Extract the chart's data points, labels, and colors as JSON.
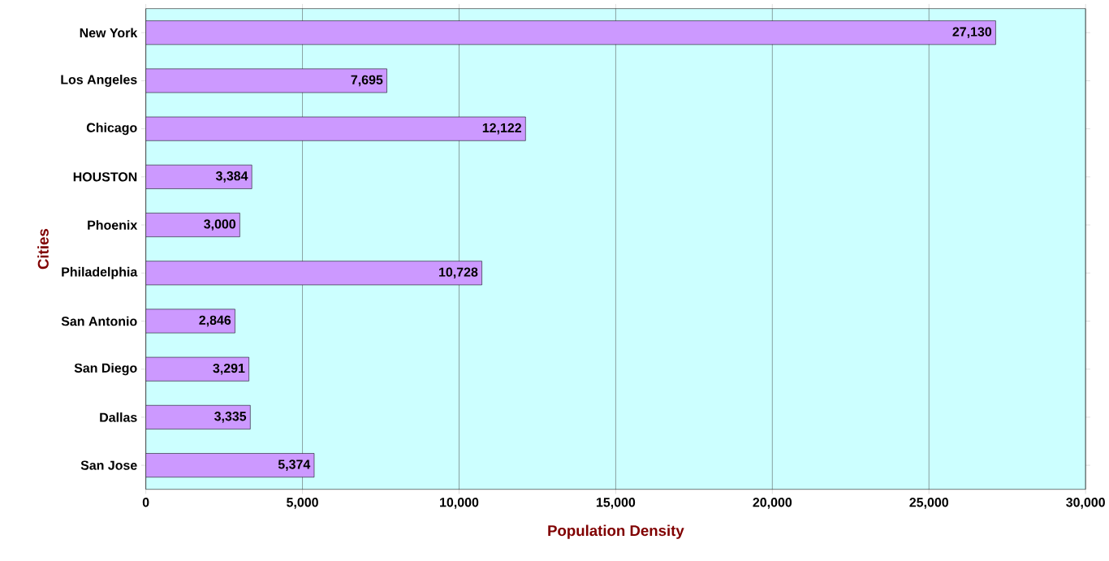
{
  "chart_data": {
    "type": "bar",
    "orientation": "horizontal",
    "xlabel": "Population Density",
    "ylabel": "Cities",
    "categories": [
      "New York",
      "Los Angeles",
      "Chicago",
      "HOUSTON",
      "Phoenix",
      "Philadelphia",
      "San Antonio",
      "San Diego",
      "Dallas",
      "San Jose"
    ],
    "values": [
      27130,
      7695,
      12122,
      3384,
      3000,
      10728,
      2846,
      3291,
      3335,
      5374
    ],
    "value_labels": [
      "27,130",
      "7,695",
      "12,122",
      "3,384",
      "3,000",
      "10,728",
      "2,846",
      "3,291",
      "3,335",
      "5,374"
    ],
    "color": "#cc99ff",
    "xlim": [
      0,
      30000
    ],
    "xticks": [
      0,
      {
        "value": 5000,
        "label": "5,000"
      },
      {
        "value": 10000,
        "label": "10,000"
      },
      {
        "value": 15000,
        "label": "15,000"
      },
      {
        "value": 20000,
        "label": "20,000"
      },
      {
        "value": 25000,
        "label": "25,000"
      },
      {
        "value": 30000,
        "label": "30,000"
      }
    ],
    "grid": "x"
  }
}
